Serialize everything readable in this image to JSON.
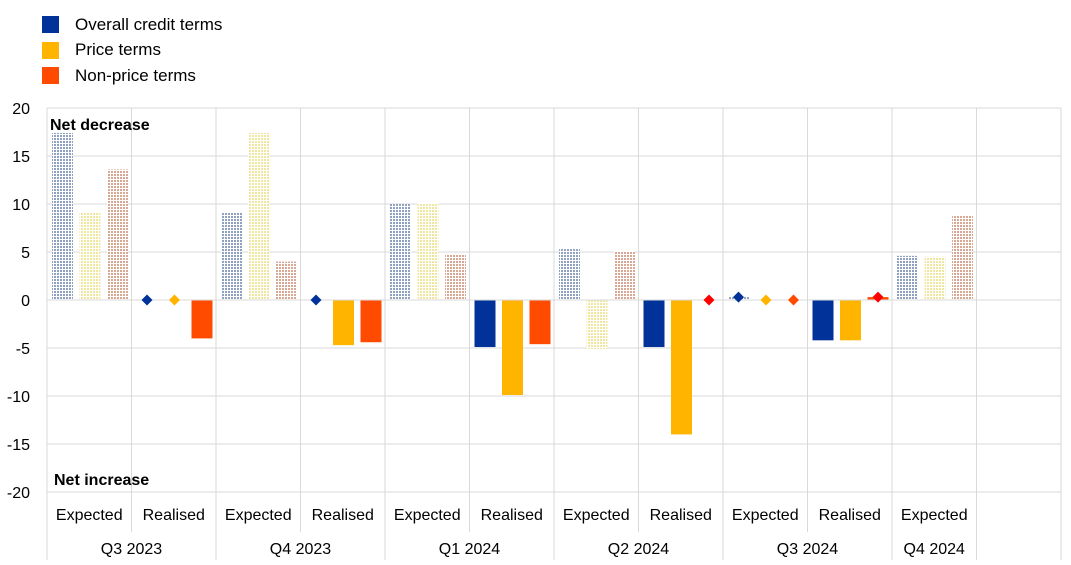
{
  "chart_data": {
    "type": "bar",
    "legend": [
      {
        "name": "Overall credit terms",
        "color": "#003299"
      },
      {
        "name": "Price terms",
        "color": "#FFB400"
      },
      {
        "name": "Non-price terms",
        "color": "#FF4B00"
      }
    ],
    "annotations": {
      "top": "Net decrease",
      "bottom": "Net increase"
    },
    "ylim": [
      -20,
      20
    ],
    "yticks": [
      20,
      15,
      10,
      5,
      0,
      -5,
      -10,
      -15,
      -20
    ],
    "quarters": [
      "Q3 2023",
      "Q4 2023",
      "Q1 2024",
      "Q2 2024",
      "Q3 2024",
      "Q4 2024"
    ],
    "groups": [
      {
        "quarter": "Q3 2023",
        "label": "Expected",
        "kind": "expected",
        "values": [
          17.4,
          9.1,
          13.6
        ]
      },
      {
        "quarter": "Q3 2023",
        "label": "Realised",
        "kind": "realised",
        "values": [
          0.0,
          0.0,
          -4.0
        ]
      },
      {
        "quarter": "Q4 2023",
        "label": "Expected",
        "kind": "expected",
        "values": [
          9.1,
          17.4,
          4.0
        ]
      },
      {
        "quarter": "Q4 2023",
        "label": "Realised",
        "kind": "realised",
        "values": [
          0.0,
          -4.7,
          -4.4
        ]
      },
      {
        "quarter": "Q1 2024",
        "label": "Expected",
        "kind": "expected",
        "values": [
          10.0,
          10.1,
          4.8
        ]
      },
      {
        "quarter": "Q1 2024",
        "label": "Realised",
        "kind": "realised",
        "values": [
          -4.9,
          -9.9,
          -4.6
        ]
      },
      {
        "quarter": "Q2 2024",
        "label": "Expected",
        "kind": "expected",
        "values": [
          5.3,
          -5.1,
          5.1
        ]
      },
      {
        "quarter": "Q2 2024",
        "label": "Realised",
        "kind": "realised",
        "values": [
          -4.9,
          -14.0,
          0.0
        ]
      },
      {
        "quarter": "Q3 2024",
        "label": "Expected",
        "kind": "expected",
        "values": [
          0.3,
          0.0,
          0.0
        ]
      },
      {
        "quarter": "Q3 2024",
        "label": "Realised",
        "kind": "realised",
        "values": [
          -4.2,
          -4.2,
          0.3
        ]
      },
      {
        "quarter": "Q4 2024",
        "label": "Expected",
        "kind": "expected",
        "values": [
          4.6,
          4.5,
          8.8
        ]
      }
    ],
    "diamond_markers": [
      {
        "group": 1,
        "series": 0,
        "color": "#003299"
      },
      {
        "group": 1,
        "series": 1,
        "color": "#FFB400"
      },
      {
        "group": 3,
        "series": 0,
        "color": "#003299"
      },
      {
        "group": 7,
        "series": 2,
        "color": "#FF0000"
      },
      {
        "group": 8,
        "series": 0,
        "color": "#003299"
      },
      {
        "group": 8,
        "series": 1,
        "color": "#FFB400"
      },
      {
        "group": 8,
        "series": 2,
        "color": "#FF4B00"
      },
      {
        "group": 9,
        "series": 2,
        "color": "#FF0000"
      }
    ],
    "expected_pattern_colors": [
      "#8ea1c1",
      "#efe6a0",
      "#d9a894"
    ]
  }
}
